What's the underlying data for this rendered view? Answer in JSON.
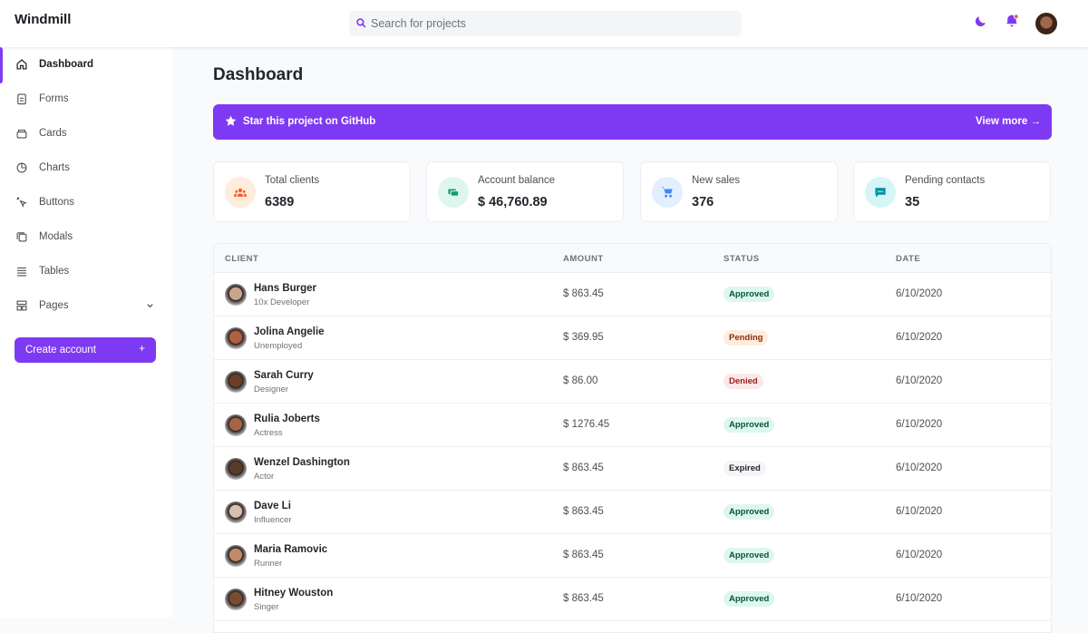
{
  "header": {
    "brand": "Windmill",
    "search_placeholder": "Search for projects"
  },
  "sidebar": {
    "items": [
      "Dashboard",
      "Forms",
      "Cards",
      "Charts",
      "Buttons",
      "Modals",
      "Tables",
      "Pages"
    ],
    "button": "Create account",
    "button_icon": "+"
  },
  "main": {
    "title": "Dashboard",
    "banner": {
      "text": "Star this project on GitHub",
      "link": "View more →"
    },
    "cards": [
      {
        "label": "Total clients",
        "value": "6389"
      },
      {
        "label": "Account balance",
        "value": "$ 46,760.89"
      },
      {
        "label": "New sales",
        "value": "376"
      },
      {
        "label": "Pending contacts",
        "value": "35"
      }
    ],
    "table": {
      "headers": [
        "CLIENT",
        "AMOUNT",
        "STATUS",
        "DATE"
      ],
      "rows": [
        [
          "Hans Burger",
          "10x Developer",
          "$ 863.45",
          "Approved",
          "6/10/2020"
        ],
        [
          "Jolina Angelie",
          "Unemployed",
          "$ 369.95",
          "Pending",
          "6/10/2020"
        ],
        [
          "Sarah Curry",
          "Designer",
          "$ 86.00",
          "Denied",
          "6/10/2020"
        ],
        [
          "Rulia Joberts",
          "Actress",
          "$ 1276.45",
          "Approved",
          "6/10/2020"
        ],
        [
          "Wenzel Dashington",
          "Actor",
          "$ 863.45",
          "Expired",
          "6/10/2020"
        ],
        [
          "Dave Li",
          "Influencer",
          "$ 863.45",
          "Approved",
          "6/10/2020"
        ],
        [
          "Maria Ramovic",
          "Runner",
          "$ 863.45",
          "Approved",
          "6/10/2020"
        ],
        [
          "Hitney Wouston",
          "Singer",
          "$ 863.45",
          "Approved",
          "6/10/2020"
        ]
      ]
    }
  }
}
